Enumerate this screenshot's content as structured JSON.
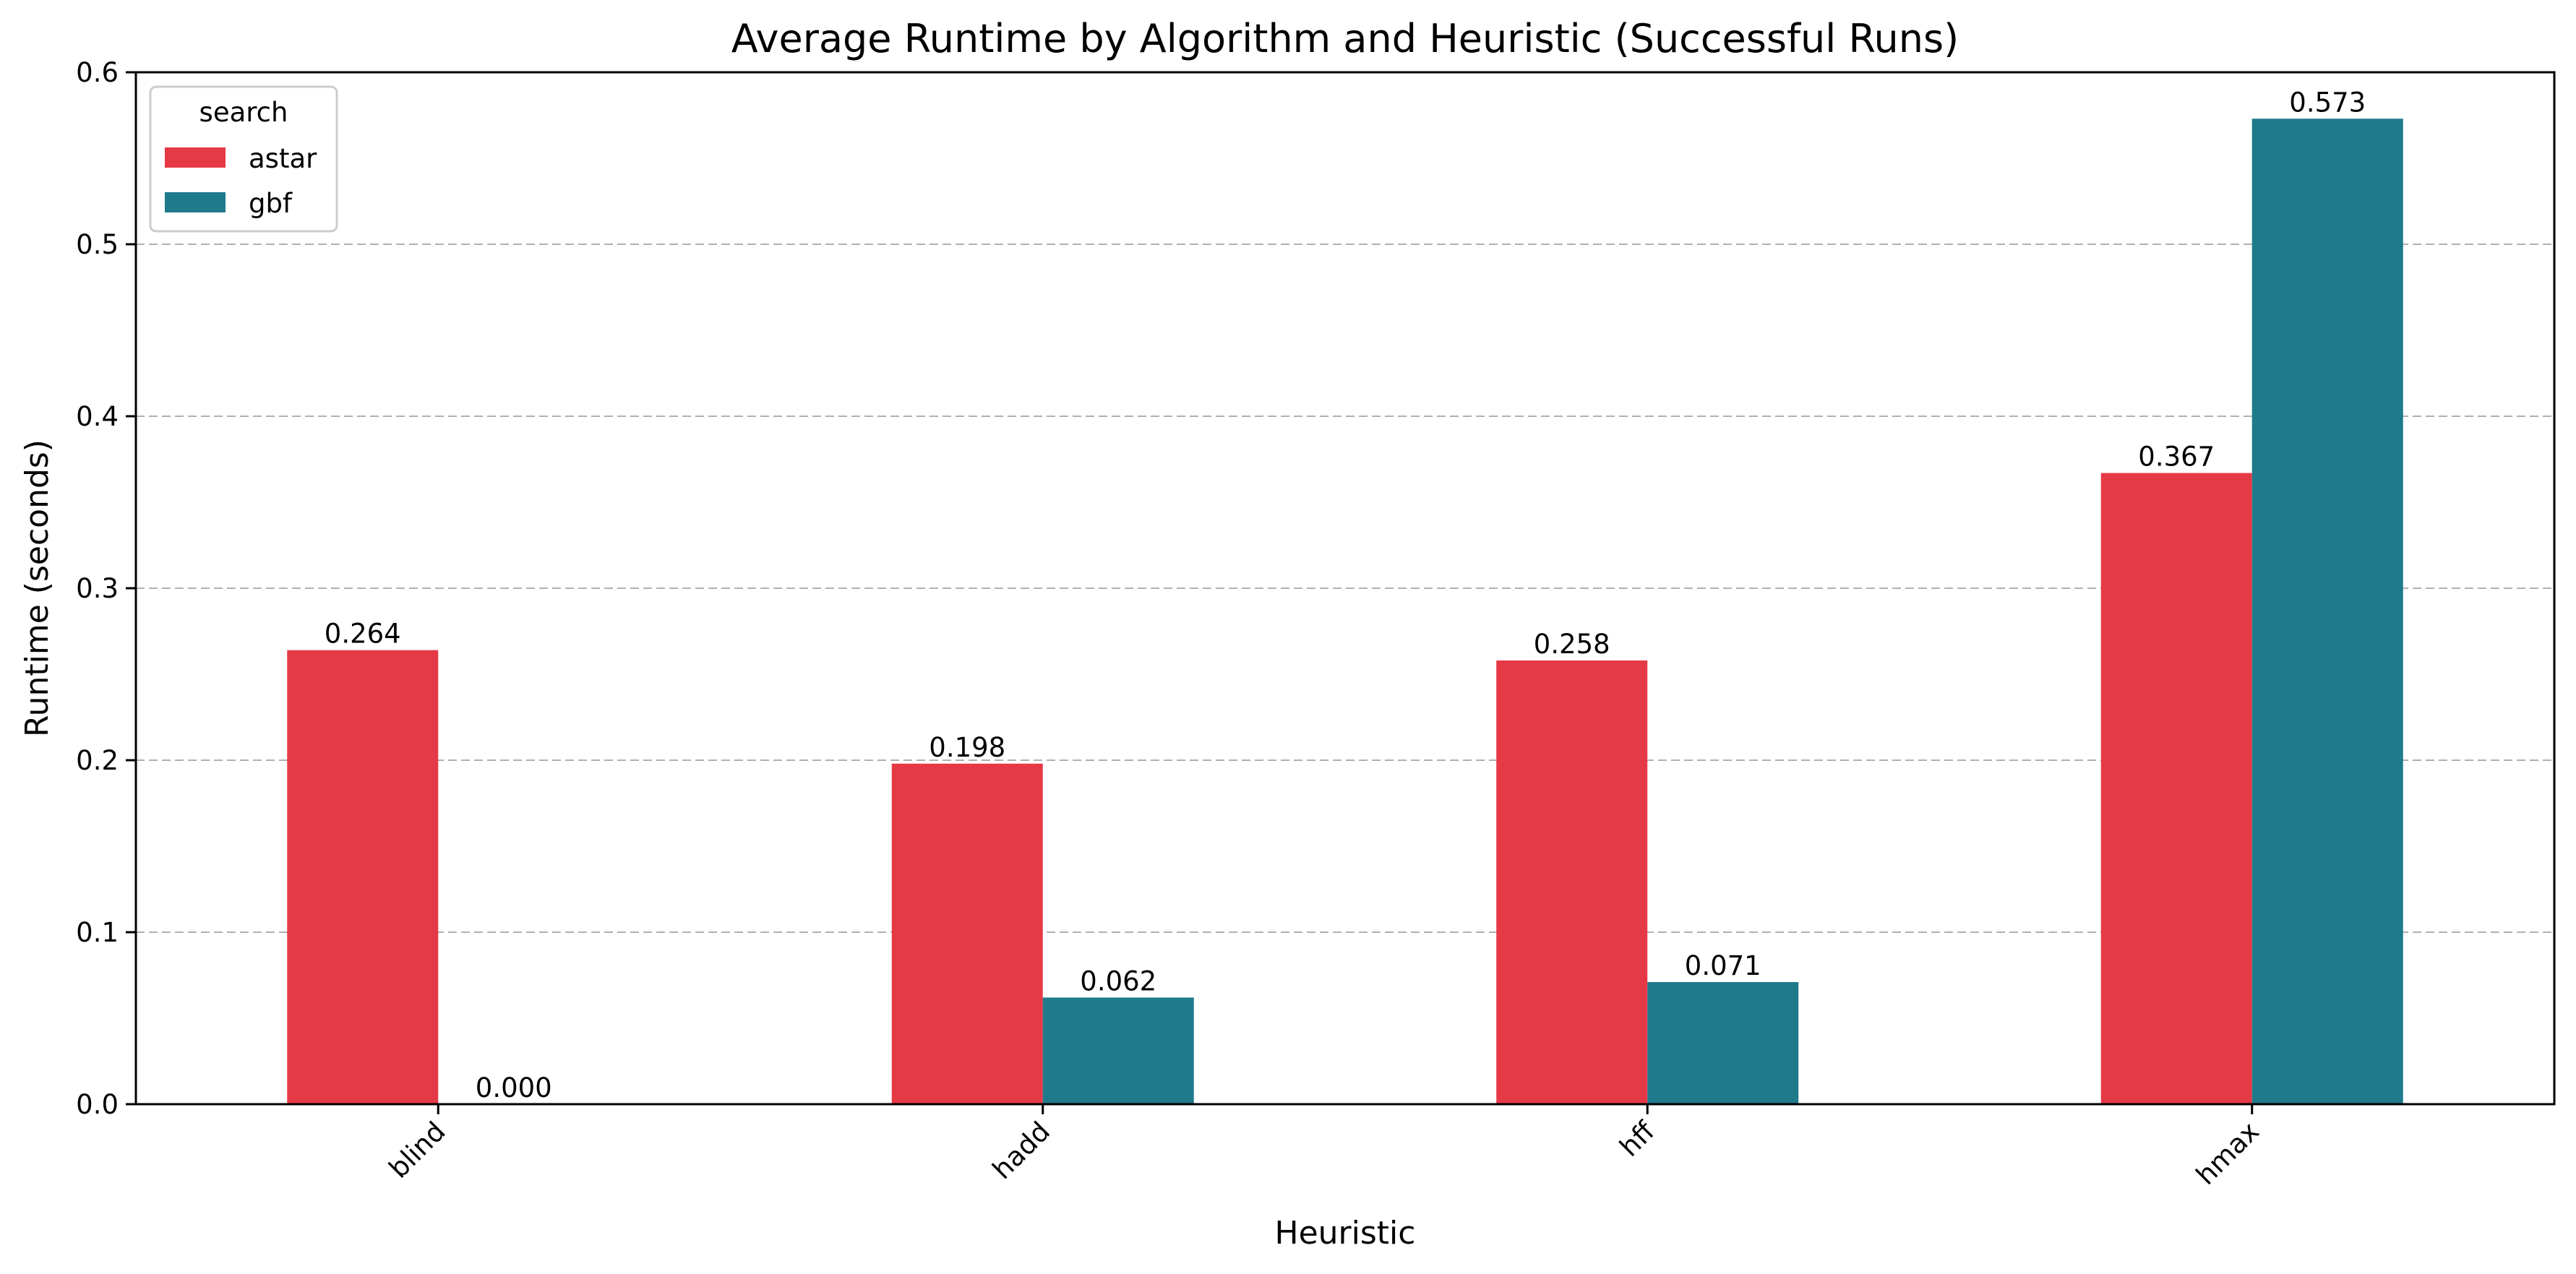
{
  "chart_data": {
    "type": "bar",
    "title": "Average Runtime by Algorithm and Heuristic (Successful Runs)",
    "xlabel": "Heuristic",
    "ylabel": "Runtime (seconds)",
    "categories": [
      "blind",
      "hadd",
      "hff",
      "hmax"
    ],
    "series": [
      {
        "name": "astar",
        "color": "#e63946",
        "values": [
          0.264,
          0.198,
          0.258,
          0.367
        ],
        "labels": [
          "0.264",
          "0.198",
          "0.258",
          "0.367"
        ]
      },
      {
        "name": "gbf",
        "color": "#1f7a8c",
        "values": [
          0.0,
          0.062,
          0.071,
          0.573
        ],
        "labels": [
          "0.000",
          "0.062",
          "0.071",
          "0.573"
        ]
      }
    ],
    "ylim": [
      0,
      0.6
    ],
    "yticks": [
      "0.0",
      "0.1",
      "0.2",
      "0.3",
      "0.4",
      "0.5",
      "0.6"
    ],
    "grid": "y-dashed",
    "legend": {
      "title": "search",
      "placement": "top-left"
    }
  }
}
